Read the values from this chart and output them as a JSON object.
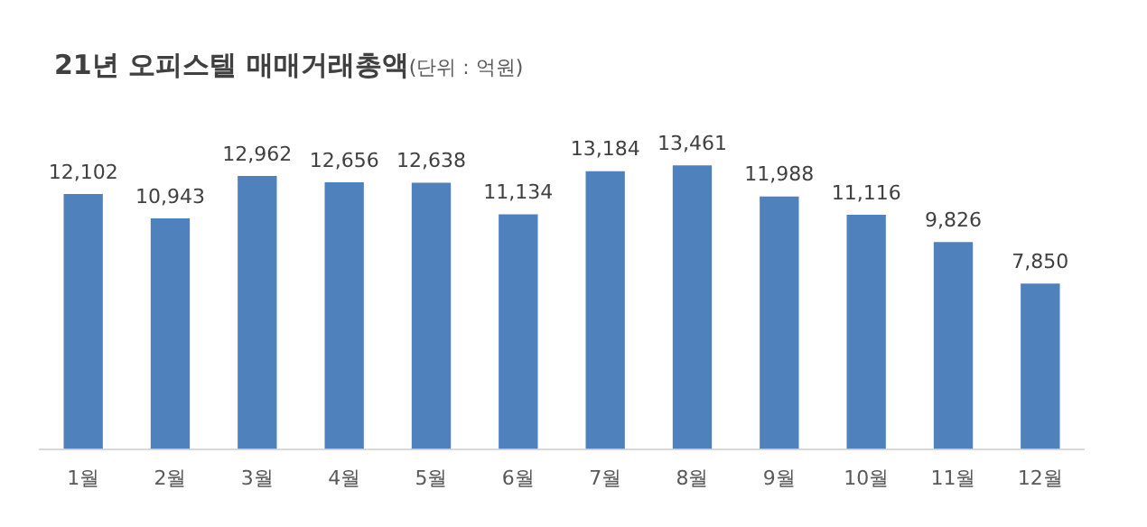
{
  "chart_data": {
    "type": "bar",
    "title": "21년 오피스텔 매매거래총액",
    "subtitle": "(단위 : 억원)",
    "categories": [
      "1월",
      "2월",
      "3월",
      "4월",
      "5월",
      "6월",
      "7월",
      "8월",
      "9월",
      "10월",
      "11월",
      "12월"
    ],
    "values": [
      12102,
      10943,
      12962,
      12656,
      12638,
      11134,
      13184,
      13461,
      11988,
      11116,
      9826,
      7850
    ],
    "value_labels": [
      "12,102",
      "10,943",
      "12,962",
      "12,656",
      "12,638",
      "11,134",
      "13,184",
      "13,461",
      "11,988",
      "11,116",
      "9,826",
      "7,850"
    ],
    "color": "#4f81bd",
    "grid": false,
    "legend": false
  }
}
